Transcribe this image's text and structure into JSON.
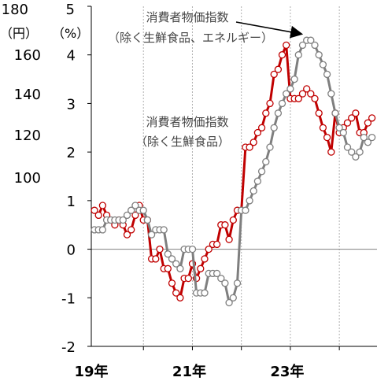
{
  "chart_data": {
    "type": "line",
    "y_right_label_top": "5",
    "y_left_extra": [
      "180",
      "160",
      "140",
      "120",
      "100"
    ],
    "y_left_unit": "（円）",
    "y_unit": "（%）",
    "yticks": [
      -2,
      -1,
      0,
      1,
      2,
      3,
      4
    ],
    "ylim": [
      -2,
      5
    ],
    "xlabels": [
      {
        "label": "19年",
        "t": 0
      },
      {
        "label": "21年",
        "t": 24
      },
      {
        "label": "23年",
        "t": 48
      }
    ],
    "xticks_t": [
      12,
      24,
      36,
      48,
      60
    ],
    "annotations": [
      {
        "id": "a1",
        "line1": "消費者物価指数",
        "line2": "（除く生鮮食品、エネルギー）"
      },
      {
        "id": "a2",
        "line1": "消費者物価指数",
        "line2": "（除く生鮮食品）"
      }
    ],
    "series": [
      {
        "id": "core",
        "color": "#c00000",
        "values": [
          0.8,
          0.7,
          0.9,
          0.7,
          0.6,
          0.5,
          0.6,
          0.5,
          0.3,
          0.4,
          0.7,
          0.9,
          0.6,
          0.6,
          -0.2,
          -0.2,
          0.0,
          -0.4,
          -0.4,
          -0.7,
          -0.9,
          -1.0,
          -0.6,
          -0.6,
          -0.3,
          -0.6,
          -0.4,
          -0.2,
          0.0,
          0.1,
          0.1,
          0.5,
          0.5,
          0.2,
          0.6,
          0.8,
          0.8,
          2.1,
          2.1,
          2.2,
          2.4,
          2.5,
          2.8,
          3.0,
          3.6,
          3.7,
          4.0,
          4.2,
          3.1,
          3.1,
          3.1,
          3.2,
          3.3,
          3.2,
          3.1,
          2.8,
          2.5,
          2.3,
          2.0,
          2.8,
          2.4,
          2.5,
          2.6,
          2.7,
          2.8,
          2.4,
          2.4,
          2.6,
          2.7
        ]
      },
      {
        "id": "core-core",
        "color": "#7f7f7f",
        "values": [
          0.4,
          0.4,
          0.4,
          0.6,
          0.6,
          0.6,
          0.6,
          0.6,
          0.7,
          0.8,
          0.9,
          0.8,
          0.8,
          0.6,
          0.3,
          0.4,
          0.4,
          0.4,
          -0.1,
          -0.2,
          -0.3,
          -0.4,
          0.0,
          0.0,
          0.0,
          -0.9,
          -0.9,
          -0.9,
          -0.5,
          -0.5,
          -0.5,
          -0.6,
          -0.7,
          -1.1,
          -1.0,
          -0.7,
          0.8,
          0.8,
          1.0,
          1.2,
          1.4,
          1.6,
          1.8,
          2.1,
          2.5,
          2.8,
          3.0,
          3.2,
          3.3,
          3.5,
          4.0,
          4.2,
          4.3,
          4.3,
          4.2,
          4.0,
          3.8,
          3.6,
          3.2,
          2.8,
          2.5,
          2.4,
          2.1,
          2.0,
          1.9,
          2.0,
          2.3,
          2.2,
          2.3
        ]
      }
    ]
  }
}
